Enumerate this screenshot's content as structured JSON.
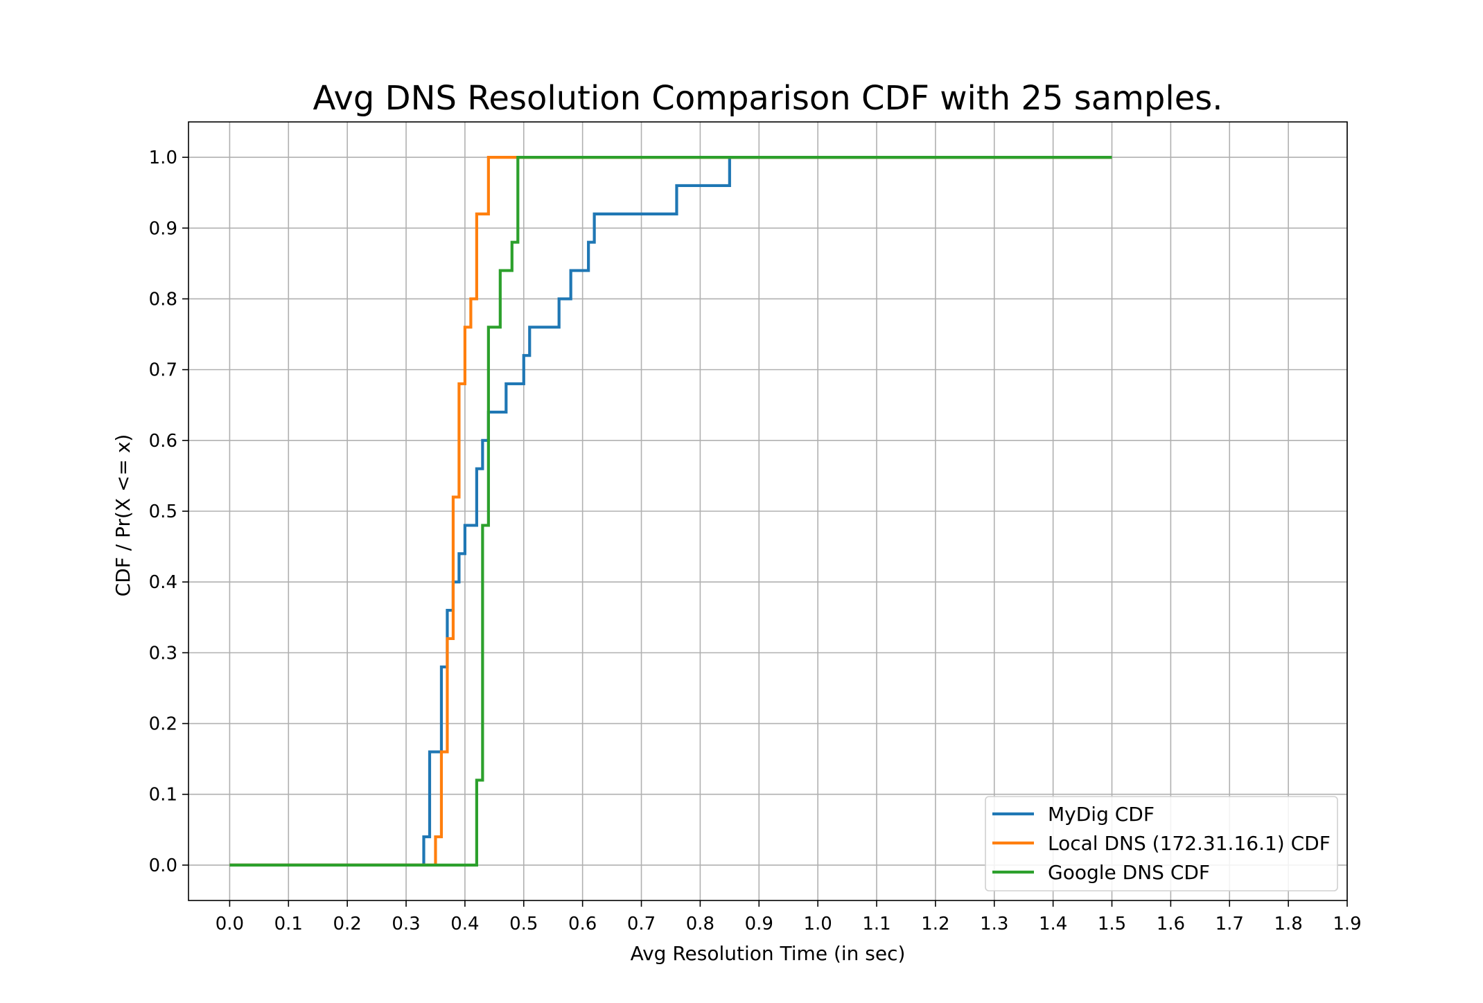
{
  "chart_data": {
    "type": "line",
    "step": "post",
    "title": "Avg DNS Resolution Comparison CDF with 25 samples.",
    "xlabel": "Avg Resolution Time (in sec)",
    "ylabel": "CDF / Pr(X <= x)",
    "xlim": [
      -0.07,
      1.9
    ],
    "ylim": [
      -0.05,
      1.05
    ],
    "xticks": [
      "0.0",
      "0.1",
      "0.2",
      "0.3",
      "0.4",
      "0.5",
      "0.6",
      "0.7",
      "0.8",
      "0.9",
      "1.0",
      "1.1",
      "1.2",
      "1.3",
      "1.4",
      "1.5",
      "1.6",
      "1.7",
      "1.8",
      "1.9"
    ],
    "yticks": [
      "0.0",
      "0.1",
      "0.2",
      "0.3",
      "0.4",
      "0.5",
      "0.6",
      "0.7",
      "0.8",
      "0.9",
      "1.0"
    ],
    "grid": true,
    "legend_position": "lower-right",
    "series": [
      {
        "name": "MyDig CDF",
        "color": "#1f77b4",
        "points": [
          [
            0,
            0
          ],
          [
            0.33,
            0
          ],
          [
            0.33,
            0.04
          ],
          [
            0.34,
            0.04
          ],
          [
            0.34,
            0.16
          ],
          [
            0.36,
            0.16
          ],
          [
            0.36,
            0.28
          ],
          [
            0.37,
            0.28
          ],
          [
            0.37,
            0.36
          ],
          [
            0.38,
            0.36
          ],
          [
            0.38,
            0.4
          ],
          [
            0.39,
            0.4
          ],
          [
            0.39,
            0.44
          ],
          [
            0.4,
            0.44
          ],
          [
            0.4,
            0.48
          ],
          [
            0.42,
            0.48
          ],
          [
            0.42,
            0.56
          ],
          [
            0.43,
            0.56
          ],
          [
            0.43,
            0.6
          ],
          [
            0.44,
            0.6
          ],
          [
            0.44,
            0.64
          ],
          [
            0.47,
            0.64
          ],
          [
            0.47,
            0.68
          ],
          [
            0.5,
            0.68
          ],
          [
            0.5,
            0.72
          ],
          [
            0.51,
            0.72
          ],
          [
            0.51,
            0.76
          ],
          [
            0.56,
            0.76
          ],
          [
            0.56,
            0.8
          ],
          [
            0.58,
            0.8
          ],
          [
            0.58,
            0.84
          ],
          [
            0.61,
            0.84
          ],
          [
            0.61,
            0.88
          ],
          [
            0.62,
            0.88
          ],
          [
            0.62,
            0.92
          ],
          [
            0.76,
            0.92
          ],
          [
            0.76,
            0.96
          ],
          [
            0.85,
            0.96
          ],
          [
            0.85,
            1.0
          ],
          [
            1.5,
            1.0
          ]
        ]
      },
      {
        "name": "Local DNS (172.31.16.1) CDF",
        "color": "#ff7f0e",
        "points": [
          [
            0,
            0
          ],
          [
            0.35,
            0
          ],
          [
            0.35,
            0.04
          ],
          [
            0.36,
            0.04
          ],
          [
            0.36,
            0.16
          ],
          [
            0.37,
            0.16
          ],
          [
            0.37,
            0.32
          ],
          [
            0.38,
            0.32
          ],
          [
            0.38,
            0.52
          ],
          [
            0.39,
            0.52
          ],
          [
            0.39,
            0.68
          ],
          [
            0.4,
            0.68
          ],
          [
            0.4,
            0.76
          ],
          [
            0.41,
            0.76
          ],
          [
            0.41,
            0.8
          ],
          [
            0.42,
            0.8
          ],
          [
            0.42,
            0.92
          ],
          [
            0.44,
            0.92
          ],
          [
            0.44,
            1.0
          ],
          [
            1.5,
            1.0
          ]
        ]
      },
      {
        "name": "Google DNS CDF",
        "color": "#2ca02c",
        "points": [
          [
            0,
            0
          ],
          [
            0.42,
            0
          ],
          [
            0.42,
            0.12
          ],
          [
            0.43,
            0.12
          ],
          [
            0.43,
            0.48
          ],
          [
            0.44,
            0.48
          ],
          [
            0.44,
            0.76
          ],
          [
            0.46,
            0.76
          ],
          [
            0.46,
            0.84
          ],
          [
            0.48,
            0.84
          ],
          [
            0.48,
            0.88
          ],
          [
            0.49,
            0.88
          ],
          [
            0.49,
            1.0
          ],
          [
            1.5,
            1.0
          ]
        ]
      }
    ]
  }
}
